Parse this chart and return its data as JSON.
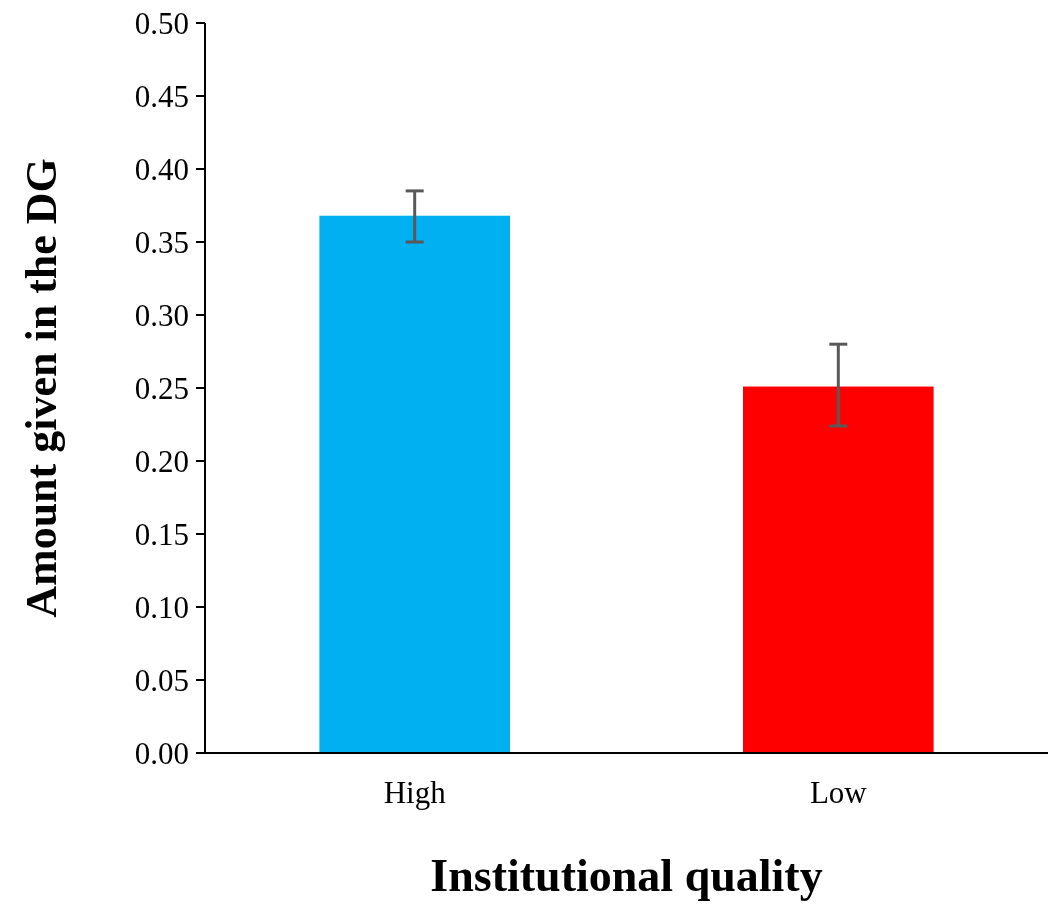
{
  "chart_data": {
    "type": "bar",
    "xlabel": "Institutional quality",
    "ylabel": "Amount given in the DG",
    "categories": [
      "High",
      "Low"
    ],
    "values": [
      0.368,
      0.251
    ],
    "colors": [
      "#00b0f0",
      "#ff0000"
    ],
    "errors": [
      [
        0.35,
        0.385
      ],
      [
        0.224,
        0.28
      ]
    ],
    "ylim": [
      0,
      0.5
    ],
    "yticks": [
      {
        "value": 0,
        "label": "0.00"
      },
      {
        "value": 0.05,
        "label": "0.05"
      },
      {
        "value": 0.1,
        "label": "0.10"
      },
      {
        "value": 0.15,
        "label": "0.15"
      },
      {
        "value": 0.2,
        "label": "0.20"
      },
      {
        "value": 0.25,
        "label": "0.25"
      },
      {
        "value": 0.3,
        "label": "0.30"
      },
      {
        "value": 0.35,
        "label": "0.35"
      },
      {
        "value": 0.4,
        "label": "0.40"
      },
      {
        "value": 0.45,
        "label": "0.45"
      },
      {
        "value": 0.5,
        "label": "0.50"
      }
    ],
    "grid": false
  }
}
